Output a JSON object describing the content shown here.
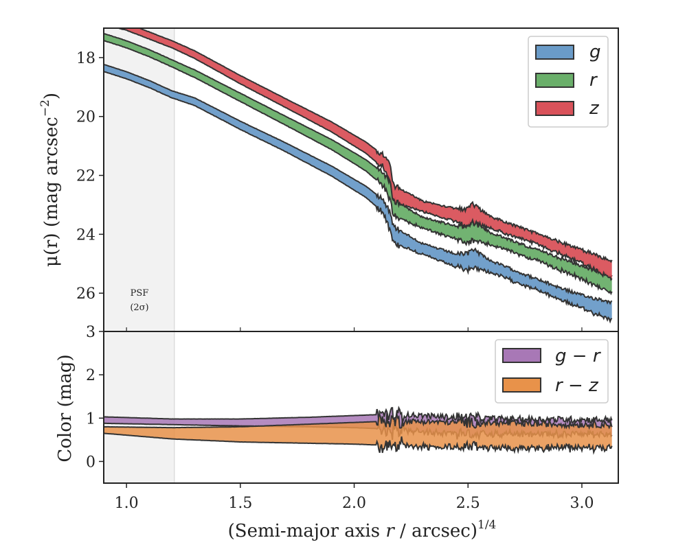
{
  "chart_data": [
    {
      "type": "area",
      "panel": "top",
      "ylabel": "μ(r) (mag arcsec⁻²)",
      "ylabel_main": "μ(r) (mag arcsec",
      "ylabel_exp": "−2",
      "ylabel_close": ")",
      "ylim": [
        27.3,
        17.0
      ],
      "yticks": [
        18,
        20,
        22,
        24,
        26
      ],
      "legend_position": "top-right",
      "series": [
        {
          "name": "g",
          "color": "#6a9bc8",
          "x": [
            0.9,
            1.0,
            1.1,
            1.2,
            1.3,
            1.5,
            1.7,
            1.9,
            2.05,
            2.13,
            2.16,
            2.17,
            2.3,
            2.45,
            2.5,
            2.52,
            2.6,
            2.8,
            3.0,
            3.13
          ],
          "mean": [
            18.35,
            18.6,
            18.9,
            19.25,
            19.5,
            20.3,
            21.05,
            21.85,
            22.55,
            23.05,
            23.6,
            24.0,
            24.5,
            24.9,
            24.95,
            24.8,
            25.1,
            25.7,
            26.3,
            26.6
          ],
          "half_width": [
            0.12,
            0.12,
            0.12,
            0.12,
            0.13,
            0.14,
            0.15,
            0.17,
            0.19,
            0.22,
            0.3,
            0.28,
            0.18,
            0.22,
            0.3,
            0.32,
            0.2,
            0.18,
            0.22,
            0.3
          ]
        },
        {
          "name": "r",
          "color": "#6aaf6a",
          "x": [
            0.9,
            1.0,
            1.1,
            1.2,
            1.3,
            1.5,
            1.7,
            1.9,
            2.05,
            2.13,
            2.16,
            2.17,
            2.3,
            2.45,
            2.5,
            2.52,
            2.6,
            2.8,
            3.0,
            3.13
          ],
          "mean": [
            17.3,
            17.55,
            17.85,
            18.2,
            18.55,
            19.35,
            20.15,
            20.95,
            21.65,
            22.15,
            22.55,
            23.1,
            23.6,
            23.95,
            24.0,
            23.9,
            24.15,
            24.7,
            25.3,
            25.7
          ],
          "half_width": [
            0.12,
            0.12,
            0.12,
            0.12,
            0.13,
            0.14,
            0.15,
            0.17,
            0.19,
            0.22,
            0.3,
            0.28,
            0.18,
            0.22,
            0.3,
            0.32,
            0.2,
            0.18,
            0.22,
            0.28
          ]
        },
        {
          "name": "z",
          "color": "#d9525a",
          "x": [
            0.9,
            1.0,
            1.1,
            1.2,
            1.3,
            1.5,
            1.7,
            1.9,
            2.05,
            2.13,
            2.16,
            2.17,
            2.3,
            2.45,
            2.5,
            2.52,
            2.6,
            2.8,
            3.0,
            3.13
          ],
          "mean": [
            16.75,
            16.95,
            17.25,
            17.55,
            17.9,
            18.75,
            19.55,
            20.35,
            21.05,
            21.55,
            22.0,
            22.6,
            23.05,
            23.35,
            23.45,
            23.3,
            23.6,
            24.15,
            24.75,
            25.2
          ],
          "half_width": [
            0.12,
            0.12,
            0.12,
            0.12,
            0.13,
            0.14,
            0.15,
            0.17,
            0.19,
            0.22,
            0.3,
            0.28,
            0.18,
            0.22,
            0.3,
            0.32,
            0.2,
            0.18,
            0.22,
            0.3
          ]
        }
      ],
      "annotation_line1": "PSF",
      "annotation_line2": "(2σ)"
    },
    {
      "type": "area",
      "panel": "bottom",
      "ylabel": "Color (mag)",
      "xlabel": "(Semi-major axis r / arcsec)",
      "xlabel_prefix": "(Semi-major axis ",
      "xlabel_var": "r",
      "xlabel_suffix": " / arcsec)",
      "xlabel_exp": "1/4",
      "xlim": [
        0.9,
        3.16
      ],
      "ylim": [
        -0.5,
        3.0
      ],
      "xticks": [
        1.0,
        1.5,
        2.0,
        2.5,
        3.0
      ],
      "xtick_labels": [
        "1.0",
        "1.5",
        "2.0",
        "2.5",
        "3.0"
      ],
      "yticks": [
        0,
        1,
        2,
        3
      ],
      "legend_position": "top-right",
      "psf_shade_x": [
        0.9,
        1.21
      ],
      "series": [
        {
          "name": "g − r",
          "color": "#a878b6",
          "x": [
            0.9,
            1.2,
            1.5,
            1.8,
            2.0,
            2.1,
            2.15,
            2.18,
            2.3,
            2.5,
            2.7,
            2.9,
            3.13
          ],
          "lower": [
            0.88,
            0.85,
            0.82,
            0.8,
            0.78,
            0.76,
            0.7,
            0.72,
            0.68,
            0.65,
            0.64,
            0.63,
            0.62
          ],
          "upper": [
            1.03,
            0.98,
            0.98,
            1.02,
            1.06,
            1.08,
            1.1,
            1.08,
            1.06,
            1.0,
            0.98,
            0.97,
            0.96
          ]
        },
        {
          "name": "r − z",
          "color": "#e8924a",
          "x": [
            0.9,
            1.2,
            1.5,
            1.8,
            2.0,
            2.1,
            2.15,
            2.18,
            2.3,
            2.5,
            2.7,
            2.9,
            3.13
          ],
          "lower": [
            0.65,
            0.52,
            0.45,
            0.42,
            0.4,
            0.38,
            0.35,
            0.36,
            0.34,
            0.33,
            0.32,
            0.31,
            0.3
          ],
          "upper": [
            0.8,
            0.78,
            0.8,
            0.86,
            0.9,
            0.92,
            0.96,
            0.94,
            0.92,
            0.9,
            0.88,
            0.86,
            0.85
          ]
        }
      ]
    }
  ]
}
